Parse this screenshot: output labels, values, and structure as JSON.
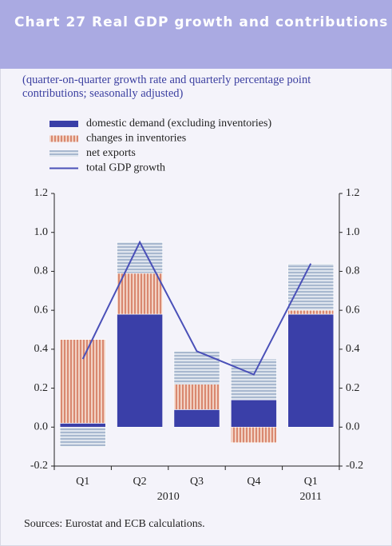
{
  "chart_data": {
    "type": "stacked-bar-line",
    "title": "Chart 27 Real GDP growth and contributions",
    "subtitle": "(quarter-on-quarter growth rate and quarterly percentage point contributions; seasonally adjusted)",
    "categories": [
      "Q1",
      "Q2",
      "Q3",
      "Q4",
      "Q1"
    ],
    "years": [
      "2010",
      "2011"
    ],
    "series": [
      {
        "name": "domestic demand (excluding inventories)",
        "color": "#3a3fa8",
        "kind": "bar",
        "values": [
          0.02,
          0.58,
          0.09,
          0.14,
          0.58
        ]
      },
      {
        "name": "changes in inventories",
        "color": "#e4a090",
        "kind": "bar",
        "values": [
          0.43,
          0.21,
          0.13,
          -0.08,
          0.02
        ]
      },
      {
        "name": "net exports",
        "color": "#b4c2d6",
        "kind": "bar",
        "values": [
          -0.1,
          0.16,
          0.17,
          0.21,
          0.24
        ]
      },
      {
        "name": "total GDP growth",
        "color": "#4a50b8",
        "kind": "line",
        "values": [
          0.35,
          0.95,
          0.39,
          0.27,
          0.84
        ]
      }
    ],
    "ylim": [
      -0.2,
      1.2
    ],
    "yticks": [
      -0.2,
      {
        "value": 0,
        "label": "0.0"
      },
      0.2,
      0.4,
      0.6,
      0.8,
      {
        "value": 1,
        "label": "1.0"
      },
      1.2
    ],
    "y2lim": [
      -0.2,
      1.2
    ],
    "y2ticks": [
      -0.2,
      {
        "value": 0,
        "label": "0.0"
      },
      0.2,
      0.4,
      0.6,
      0.8,
      {
        "value": 1,
        "label": "1.0"
      },
      1.2
    ],
    "source": "Sources: Eurostat and ECB calculations."
  }
}
